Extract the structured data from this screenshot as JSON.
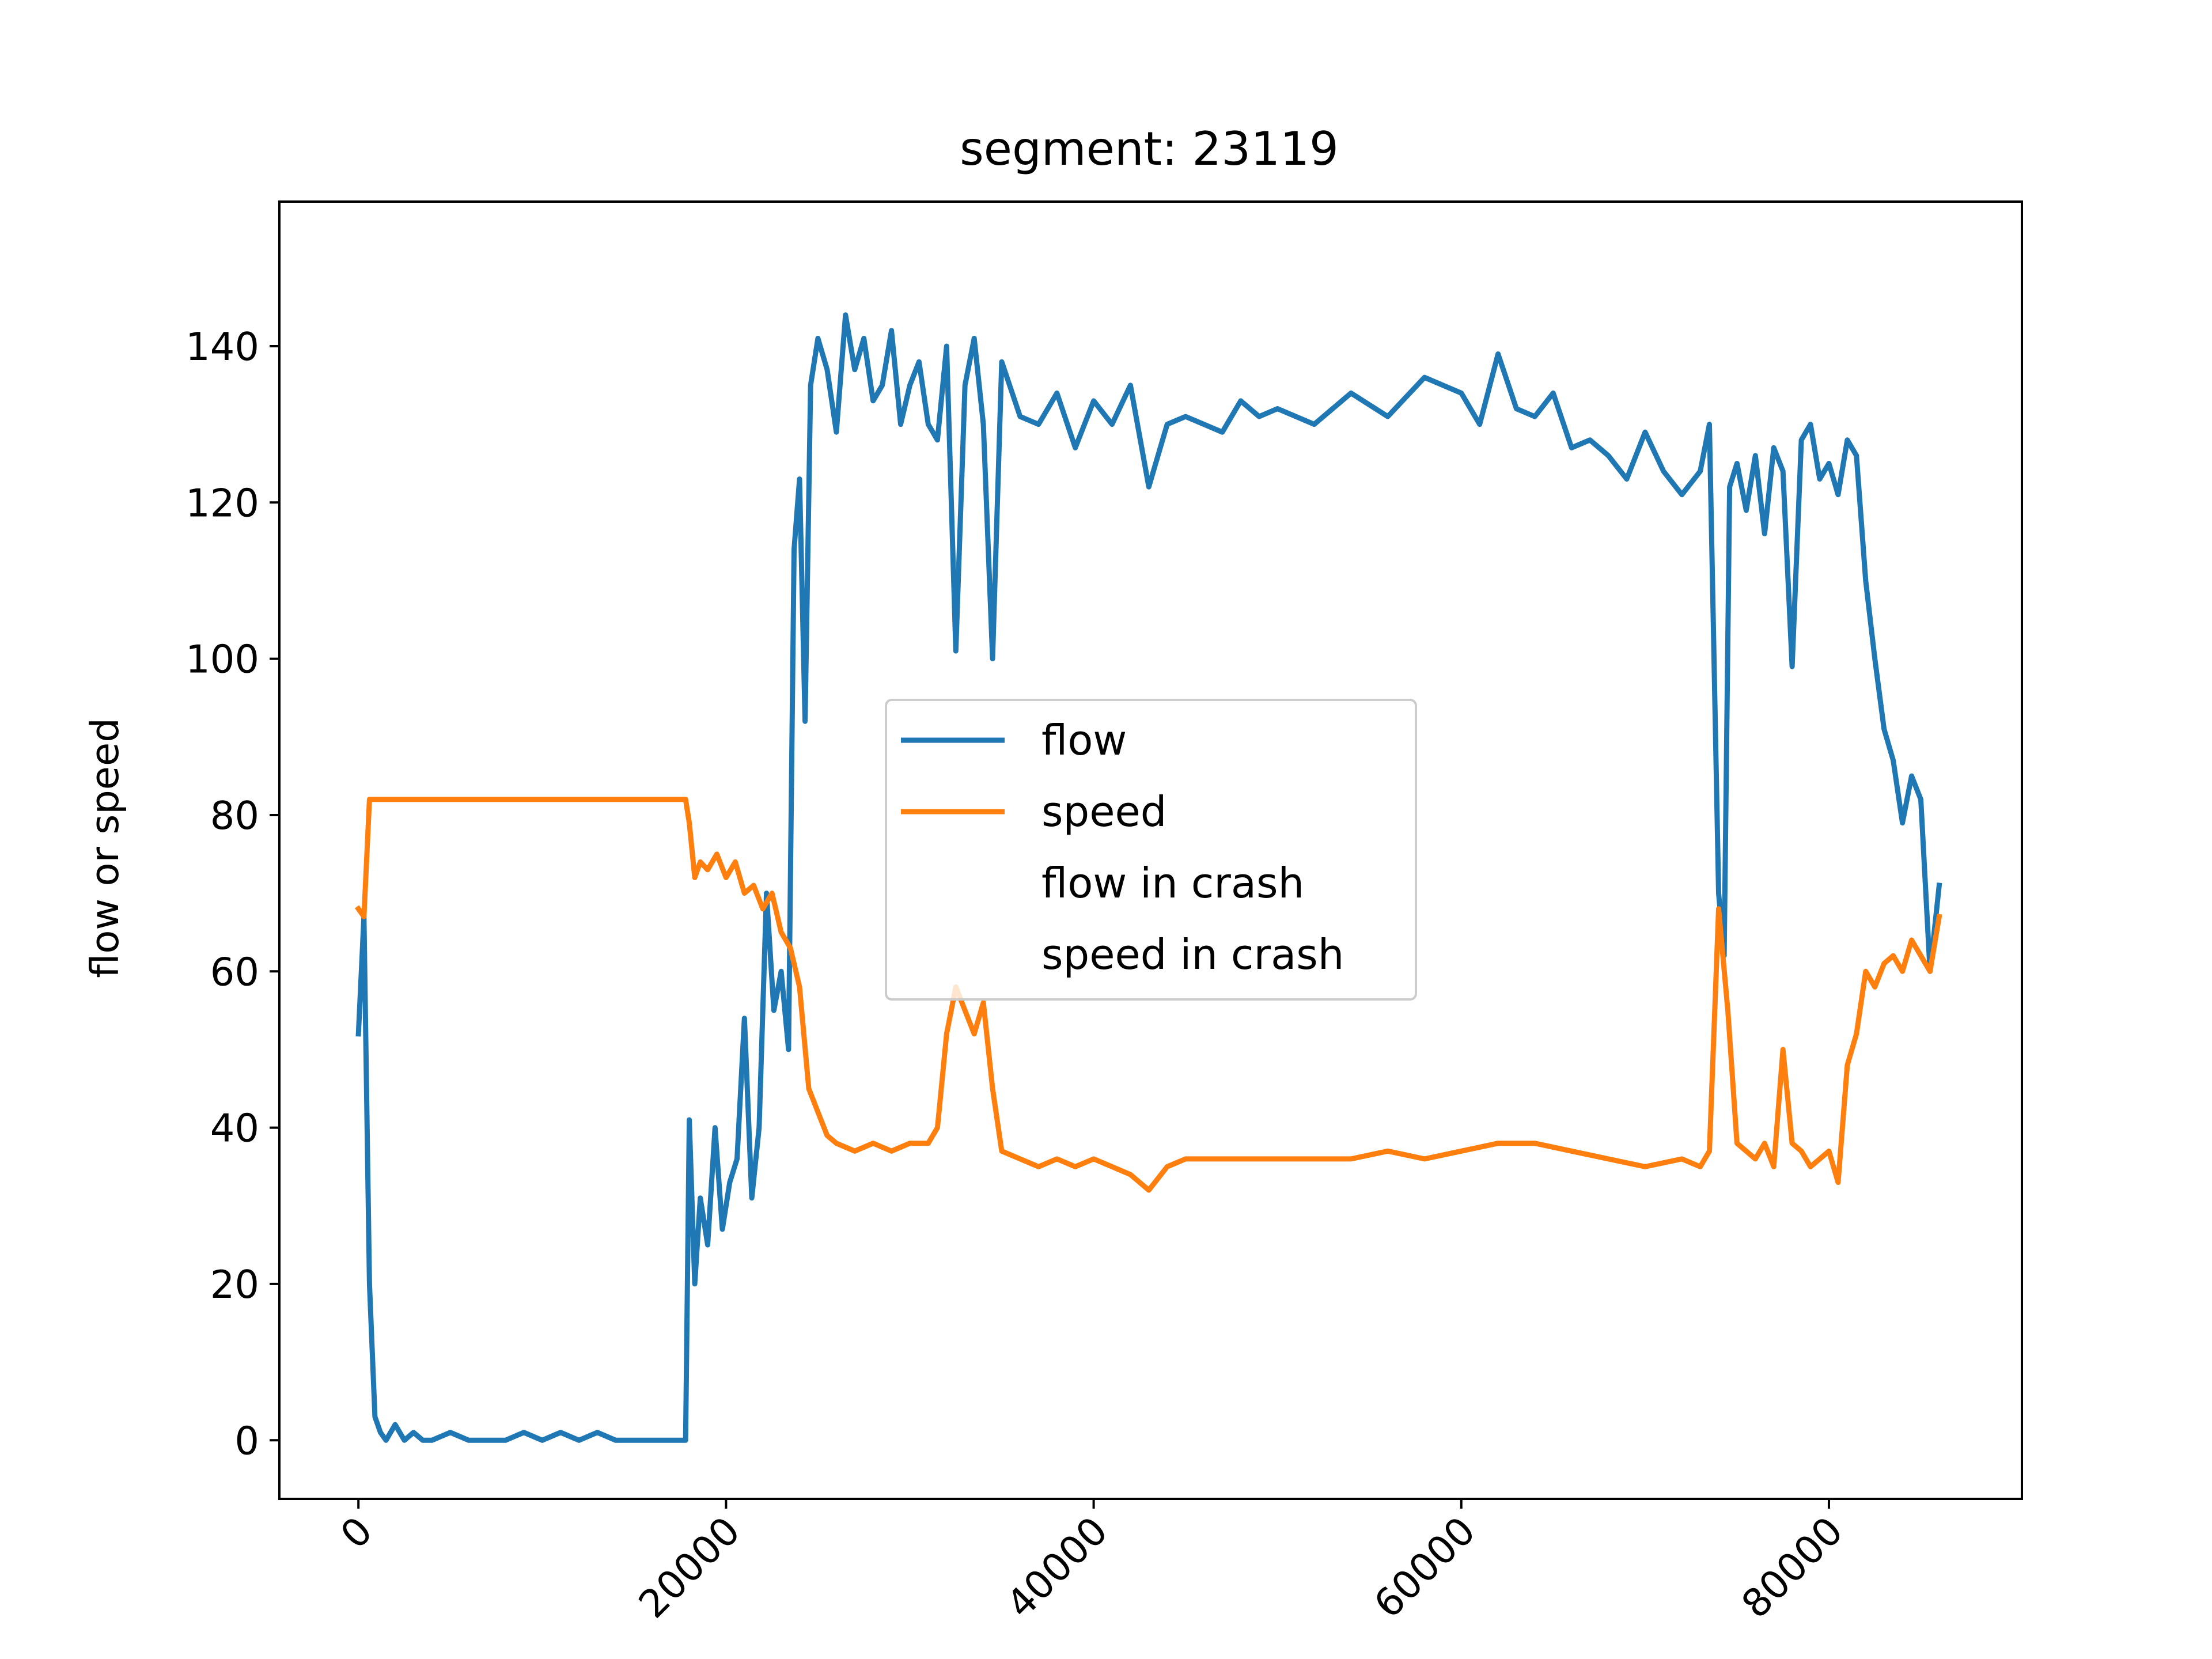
{
  "chart_data": {
    "type": "line",
    "title": "segment: 23119",
    "xlabel": "",
    "ylabel": "flow or speed",
    "xlim": [
      -4300,
      90500
    ],
    "ylim": [
      -7.5,
      158.5
    ],
    "x_ticks": [
      0,
      20000,
      40000,
      60000,
      80000
    ],
    "x_tick_labels": [
      "0",
      "20000",
      "40000",
      "60000",
      "80000"
    ],
    "y_ticks": [
      0,
      20,
      40,
      60,
      80,
      100,
      120,
      140
    ],
    "y_tick_labels": [
      "0",
      "20",
      "40",
      "60",
      "80",
      "100",
      "120",
      "140"
    ],
    "grid": false,
    "legend_position": "center",
    "series": [
      {
        "name": "flow",
        "color": "#1f77b4",
        "x": [
          0,
          300,
          600,
          900,
          1200,
          1500,
          2000,
          2500,
          3000,
          3500,
          4000,
          5000,
          6000,
          7000,
          8000,
          9000,
          10000,
          11000,
          12000,
          13000,
          14000,
          15000,
          16000,
          17000,
          17800,
          18000,
          18300,
          18600,
          19000,
          19400,
          19800,
          20200,
          20600,
          21000,
          21400,
          21800,
          22200,
          22600,
          23000,
          23400,
          23700,
          24000,
          24300,
          24600,
          25000,
          25500,
          26000,
          26500,
          27000,
          27500,
          28000,
          28500,
          29000,
          29500,
          30000,
          30500,
          31000,
          31500,
          32000,
          32500,
          33000,
          33500,
          34000,
          34500,
          35000,
          36000,
          37000,
          38000,
          39000,
          40000,
          41000,
          42000,
          43000,
          44000,
          45000,
          46000,
          47000,
          48000,
          49000,
          50000,
          52000,
          54000,
          56000,
          58000,
          60000,
          61000,
          62000,
          63000,
          64000,
          65000,
          66000,
          67000,
          68000,
          69000,
          70000,
          71000,
          72000,
          73000,
          73500,
          74000,
          74300,
          74600,
          75000,
          75500,
          76000,
          76500,
          77000,
          77500,
          78000,
          78500,
          79000,
          79500,
          80000,
          80500,
          81000,
          81500,
          82000,
          82500,
          83000,
          83500,
          84000,
          84500,
          85000,
          85500,
          86000
        ],
        "y": [
          52,
          67,
          20,
          3,
          1,
          0,
          2,
          0,
          1,
          0,
          0,
          1,
          0,
          0,
          0,
          1,
          0,
          1,
          0,
          1,
          0,
          0,
          0,
          0,
          0,
          41,
          20,
          31,
          25,
          40,
          27,
          33,
          36,
          54,
          31,
          40,
          70,
          55,
          60,
          50,
          114,
          123,
          92,
          135,
          141,
          137,
          129,
          144,
          137,
          141,
          133,
          135,
          142,
          130,
          135,
          138,
          130,
          128,
          140,
          101,
          135,
          141,
          130,
          100,
          138,
          131,
          130,
          134,
          127,
          133,
          130,
          135,
          122,
          130,
          131,
          130,
          129,
          133,
          131,
          132,
          130,
          134,
          131,
          136,
          134,
          130,
          139,
          132,
          131,
          134,
          127,
          128,
          126,
          123,
          129,
          124,
          121,
          124,
          130,
          70,
          62,
          122,
          125,
          119,
          126,
          116,
          127,
          124,
          99,
          128,
          130,
          123,
          125,
          121,
          128,
          126,
          110,
          100,
          91,
          87,
          79,
          85,
          82,
          60,
          71
        ]
      },
      {
        "name": "speed",
        "color": "#ff7f0e",
        "x": [
          0,
          300,
          600,
          1000,
          2000,
          4000,
          6000,
          8000,
          10000,
          12000,
          14000,
          16000,
          17800,
          18000,
          18300,
          18600,
          19000,
          19500,
          20000,
          20500,
          21000,
          21500,
          22000,
          22500,
          23000,
          23500,
          24000,
          24500,
          25000,
          25500,
          26000,
          27000,
          28000,
          29000,
          30000,
          31000,
          31500,
          32000,
          32500,
          33000,
          33500,
          34000,
          34500,
          35000,
          36000,
          37000,
          38000,
          39000,
          40000,
          41000,
          42000,
          43000,
          44000,
          45000,
          46000,
          48000,
          50000,
          52000,
          54000,
          56000,
          58000,
          60000,
          62000,
          64000,
          66000,
          68000,
          70000,
          72000,
          73000,
          73500,
          74000,
          74500,
          75000,
          75500,
          76000,
          76500,
          77000,
          77500,
          78000,
          78500,
          79000,
          79500,
          80000,
          80500,
          81000,
          81500,
          82000,
          82500,
          83000,
          83500,
          84000,
          84500,
          85000,
          85500,
          86000
        ],
        "y": [
          68,
          67,
          82,
          82,
          82,
          82,
          82,
          82,
          82,
          82,
          82,
          82,
          82,
          79,
          72,
          74,
          73,
          75,
          72,
          74,
          70,
          71,
          68,
          70,
          65,
          63,
          58,
          45,
          42,
          39,
          38,
          37,
          38,
          37,
          38,
          38,
          40,
          52,
          58,
          55,
          52,
          56,
          45,
          37,
          36,
          35,
          36,
          35,
          36,
          35,
          34,
          32,
          35,
          36,
          36,
          36,
          36,
          36,
          36,
          37,
          36,
          37,
          38,
          38,
          37,
          36,
          35,
          36,
          35,
          37,
          68,
          55,
          38,
          37,
          36,
          38,
          35,
          50,
          38,
          37,
          35,
          36,
          37,
          33,
          48,
          52,
          60,
          58,
          61,
          62,
          60,
          64,
          62,
          60,
          67
        ]
      }
    ],
    "legend": [
      {
        "label": "flow",
        "color": "#1f77b4",
        "show_line": true
      },
      {
        "label": "speed",
        "color": "#ff7f0e",
        "show_line": true
      },
      {
        "label": "flow in crash",
        "color": "",
        "show_line": false
      },
      {
        "label": "speed in crash",
        "color": "",
        "show_line": false
      }
    ]
  }
}
